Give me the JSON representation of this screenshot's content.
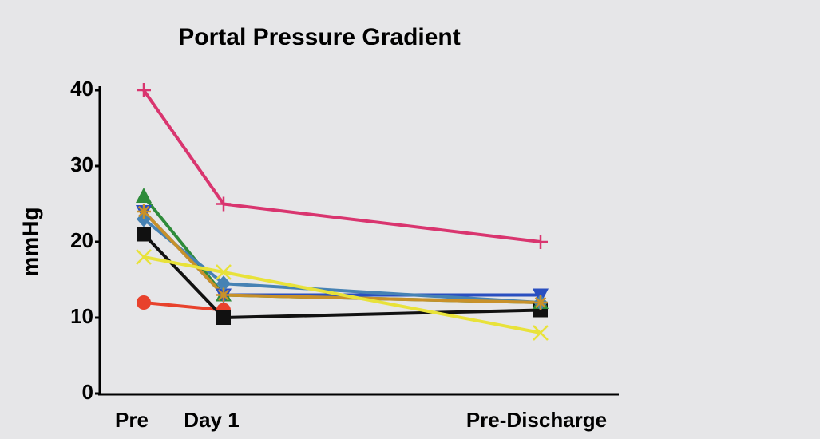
{
  "chart_data": {
    "type": "line",
    "title": "Portal Pressure Gradient",
    "ylabel": "mmHg",
    "categories": [
      "Pre",
      "Day 1",
      "Pre-Discharge"
    ],
    "ylim": [
      0,
      40
    ],
    "yticks": [
      0,
      10,
      20,
      30,
      40
    ],
    "series": [
      {
        "color": "#d9356f",
        "marker": "plus",
        "values": [
          40,
          25,
          20
        ]
      },
      {
        "color": "#e8422c",
        "marker": "circle",
        "values": [
          12,
          11,
          null
        ]
      },
      {
        "color": "#111111",
        "marker": "square",
        "values": [
          21,
          10,
          11
        ]
      },
      {
        "color": "#2e8b3a",
        "marker": "triangle",
        "values": [
          26,
          13,
          12
        ]
      },
      {
        "color": "#2a4fc0",
        "marker": "triangle-down",
        "values": [
          24,
          13,
          13
        ]
      },
      {
        "color": "#4682b4",
        "marker": "diamond",
        "values": [
          23,
          14.5,
          12
        ]
      },
      {
        "color": "#c8912a",
        "marker": "star",
        "values": [
          24,
          13,
          12
        ]
      },
      {
        "color": "#e8e23a",
        "marker": "x",
        "values": [
          18,
          16,
          8
        ]
      }
    ]
  }
}
